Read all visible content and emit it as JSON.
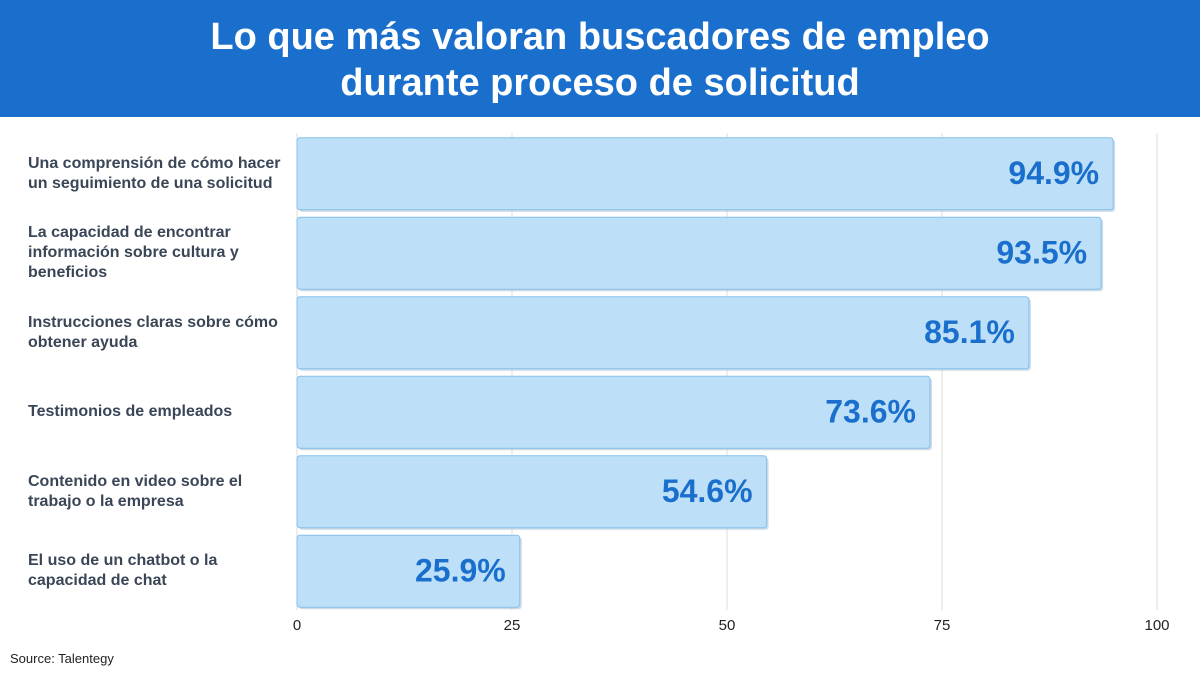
{
  "chart_data": {
    "type": "bar",
    "orientation": "horizontal",
    "title": "Lo que más valoran buscadores de empleo durante proceso de solicitud",
    "categories": [
      "Una comprensión de cómo hacer un seguimiento de una solicitud",
      "La capacidad de encontrar información sobre cultura y beneficios",
      "Instrucciones claras sobre cómo obtener ayuda",
      "Testimonios de empleados",
      "Contenido en video sobre el trabajo o la empresa",
      "El uso de un chatbot o la capacidad de chat"
    ],
    "values": [
      94.9,
      93.5,
      85.1,
      73.6,
      54.6,
      25.9
    ],
    "value_labels": [
      "94.9%",
      "93.5%",
      "85.1%",
      "73.6%",
      "54.6%",
      "25.9%"
    ],
    "color": "#bde0f8",
    "xlim": [
      0,
      100
    ],
    "xticks": [
      0,
      25,
      50,
      75,
      100
    ],
    "grid": true,
    "source": "Source: Talentegy"
  }
}
